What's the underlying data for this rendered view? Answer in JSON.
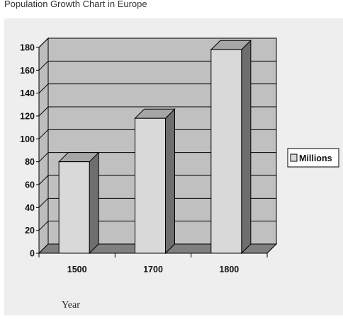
{
  "chart_data": {
    "type": "bar",
    "title": "Population Growth Chart in Europe",
    "categories": [
      "1500",
      "1700",
      "1800"
    ],
    "series": [
      {
        "name": "Millions",
        "values": [
          80,
          118,
          178
        ]
      }
    ],
    "xlabel": "Year",
    "ylabel": "",
    "ylim": [
      0,
      180
    ],
    "yticks": [
      0,
      20,
      40,
      60,
      80,
      100,
      120,
      140,
      160,
      180
    ],
    "grid": true,
    "legend": "right",
    "style": "3d",
    "colors": {
      "bar_front": "#d9d9d9",
      "bar_top": "#a6a6a6",
      "bar_side": "#6e6e6e",
      "plot_back": "#c0c0c0",
      "plot_floor": "#808080",
      "plot_wall": "#bdbdbd"
    }
  }
}
